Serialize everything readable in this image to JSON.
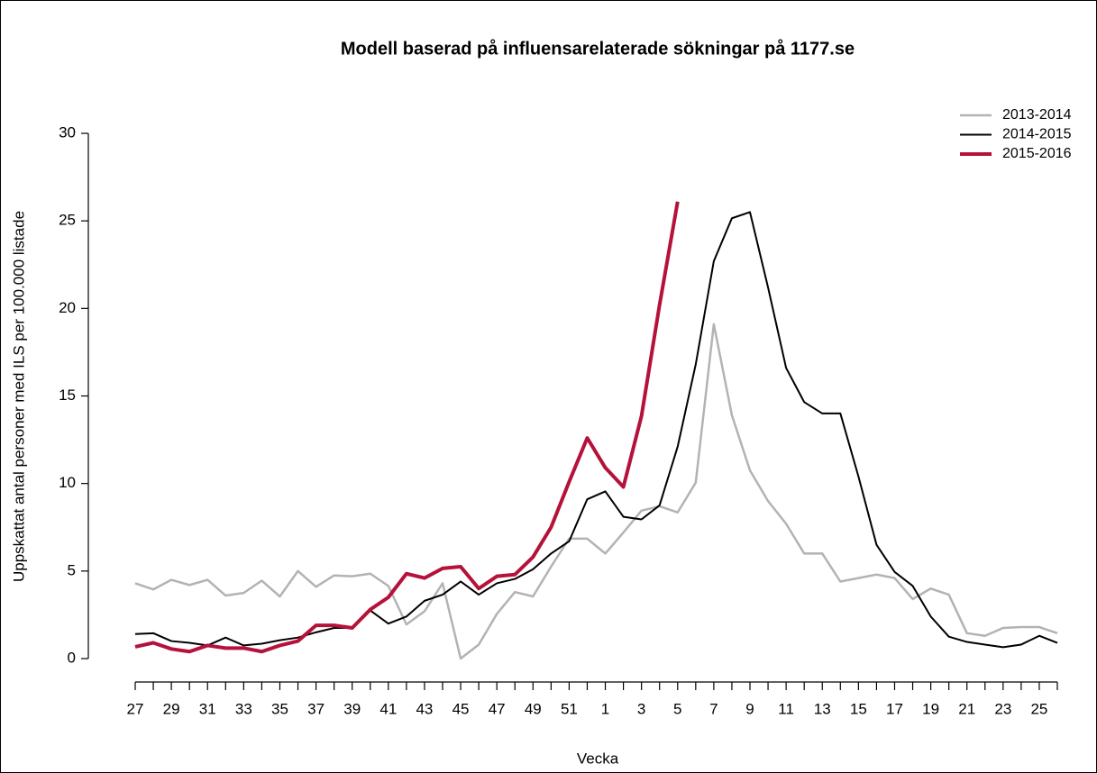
{
  "chart_data": {
    "type": "line",
    "title": "Modell baserad på influensarelaterade sökningar på 1177.se",
    "x_label": "Vecka",
    "y_label": "Uppskattat antal personer med ILS per 100.000 listade",
    "categories": [
      "27",
      null,
      "29",
      null,
      "31",
      null,
      "33",
      null,
      "35",
      null,
      "37",
      null,
      "39",
      null,
      "41",
      null,
      "43",
      null,
      "45",
      null,
      "47",
      null,
      "49",
      null,
      "51",
      null,
      "1",
      null,
      "3",
      null,
      "5",
      null,
      "7",
      null,
      "9",
      null,
      "11",
      null,
      "13",
      null,
      "15",
      null,
      "17",
      null,
      "19",
      null,
      "21",
      null,
      "23",
      null,
      "25",
      null
    ],
    "ylim": [
      0,
      30
    ],
    "yticks": [
      0,
      5,
      10,
      15,
      20,
      25,
      30
    ],
    "legend": "top-right",
    "series": [
      {
        "name": "2013-2014",
        "color": "#b3b3b3",
        "width": 2.5,
        "values": [
          4.3,
          3.95,
          4.5,
          4.2,
          4.5,
          3.6,
          3.75,
          4.45,
          3.55,
          5.0,
          4.1,
          4.75,
          4.7,
          4.85,
          4.15,
          1.95,
          2.7,
          4.3,
          0.0,
          0.8,
          2.55,
          3.8,
          3.55,
          5.25,
          6.85,
          6.85,
          6.0,
          7.2,
          8.45,
          8.7,
          8.35,
          10.05,
          19.1,
          13.9,
          10.75,
          9.0,
          7.7,
          6.0,
          6.0,
          4.4,
          4.6,
          4.8,
          4.6,
          3.4,
          4.0,
          3.65,
          1.45,
          1.3,
          1.75,
          1.8,
          1.8,
          1.45
        ]
      },
      {
        "name": "2014-2015",
        "color": "#000000",
        "width": 2,
        "values": [
          1.4,
          1.45,
          1.0,
          0.9,
          0.75,
          1.2,
          0.75,
          0.85,
          1.05,
          1.2,
          1.5,
          1.75,
          1.75,
          2.75,
          2.0,
          2.4,
          3.3,
          3.65,
          4.4,
          3.65,
          4.3,
          4.55,
          5.1,
          6.0,
          6.7,
          9.1,
          9.55,
          8.1,
          7.95,
          8.75,
          12.1,
          16.8,
          22.7,
          25.15,
          25.5,
          21.2,
          16.6,
          14.65,
          14.0,
          14.0,
          10.4,
          6.5,
          4.95,
          4.15,
          2.4,
          1.25,
          0.95,
          0.8,
          0.65,
          0.8,
          1.3,
          0.9
        ]
      },
      {
        "name": "2015-2016",
        "color": "#b5123b",
        "width": 4,
        "values": [
          0.67,
          0.9,
          0.55,
          0.4,
          0.75,
          0.6,
          0.6,
          0.4,
          0.75,
          1.0,
          1.9,
          1.9,
          1.75,
          2.8,
          3.5,
          4.85,
          4.6,
          5.15,
          5.25,
          4.0,
          4.7,
          4.8,
          5.8,
          7.5,
          10.1,
          12.6,
          10.9,
          9.8,
          13.85,
          20.2,
          26.1,
          null,
          null,
          null,
          null,
          null,
          null,
          null,
          null,
          null,
          null,
          null,
          null,
          null,
          null,
          null,
          null,
          null,
          null,
          null,
          null,
          null
        ]
      }
    ]
  }
}
